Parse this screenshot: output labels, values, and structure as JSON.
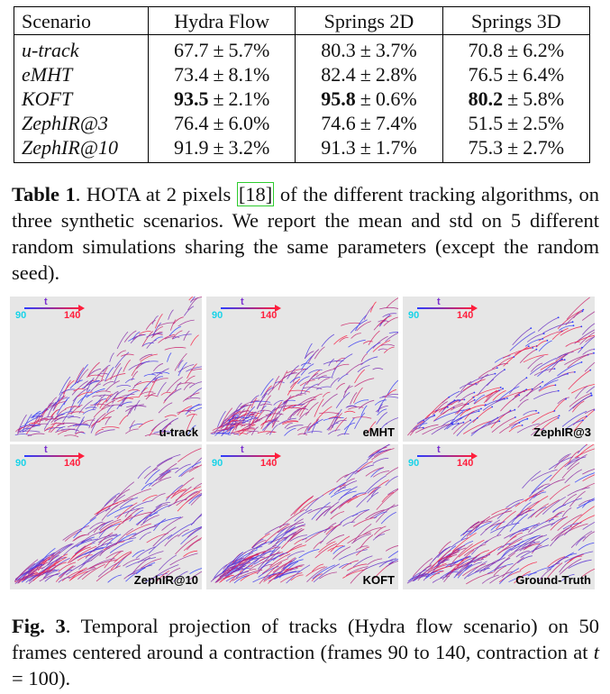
{
  "table": {
    "headers": [
      "Scenario",
      "Hydra Flow",
      "Springs 2D",
      "Springs 3D"
    ],
    "rows": [
      {
        "name": "u-track",
        "cells": [
          {
            "v": "67.7",
            "s": "5.7%"
          },
          {
            "v": "80.3",
            "s": "3.7%"
          },
          {
            "v": "70.8",
            "s": "6.2%"
          }
        ]
      },
      {
        "name": "eMHT",
        "cells": [
          {
            "v": "73.4",
            "s": "8.1%"
          },
          {
            "v": "82.4",
            "s": "2.8%"
          },
          {
            "v": "76.5",
            "s": "6.4%"
          }
        ]
      },
      {
        "name": "KOFT",
        "cells": [
          {
            "v": "93.5",
            "s": "2.1%",
            "best": true
          },
          {
            "v": "95.8",
            "s": "0.6%",
            "best": true
          },
          {
            "v": "80.2",
            "s": "5.8%",
            "best": true
          }
        ]
      },
      {
        "name": "ZephIR@3",
        "cells": [
          {
            "v": "76.4",
            "s": "6.0%"
          },
          {
            "v": "74.6",
            "s": "7.4%"
          },
          {
            "v": "51.5",
            "s": "2.5%"
          }
        ]
      },
      {
        "name": "ZephIR@10",
        "cells": [
          {
            "v": "91.9",
            "s": "3.2%"
          },
          {
            "v": "91.3",
            "s": "1.7%"
          },
          {
            "v": "75.3",
            "s": "2.7%"
          }
        ]
      }
    ],
    "pm": "±"
  },
  "table_caption": {
    "label": "Table 1",
    "text_before": ". HOTA at 2 pixels ",
    "cite": "[18]",
    "text_after": " of the different tracking algorithms, on three synthetic scenarios. We report the mean and std on 5 different random simulations sharing the same parameters (except the random seed)."
  },
  "figure": {
    "legend": {
      "t_label": "t",
      "low": "90",
      "high": "140",
      "low_color": "#19d3e8",
      "high_color": "#ff1e3c",
      "start_color": "#2b3cff"
    },
    "panels": [
      {
        "label": "u-track",
        "style": "dense"
      },
      {
        "label": "eMHT",
        "style": "dense"
      },
      {
        "label": "ZephIR@3",
        "style": "sparse"
      },
      {
        "label": "ZephIR@10",
        "style": "smooth"
      },
      {
        "label": "KOFT",
        "style": "smooth"
      },
      {
        "label": "Ground-Truth",
        "style": "smooth"
      }
    ]
  },
  "figure_caption": {
    "label": "Fig. 3",
    "text": ".  Temporal projection of tracks (Hydra flow scenario) on 50 frames centered around a contraction (frames 90 to 140, contraction at ",
    "math_var": "t",
    "math_rest": " = 100)."
  }
}
